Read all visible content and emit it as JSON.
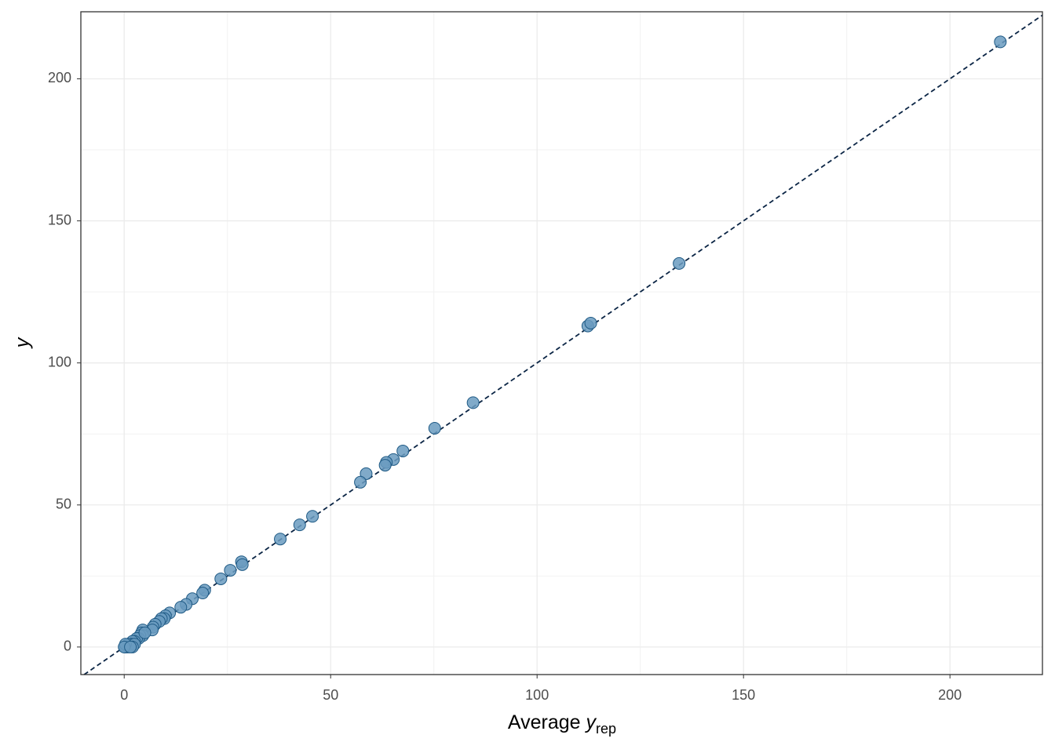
{
  "chart_data": {
    "type": "scatter",
    "x_label": "Average",
    "x_label_var": "y",
    "x_label_sub": "rep",
    "y_label": "y",
    "x": [
      212.2,
      134.4,
      112.3,
      113,
      84.5,
      75.2,
      67.5,
      65.2,
      63.5,
      63.2,
      58.6,
      57.2,
      45.6,
      42.5,
      37.8,
      28.4,
      28.6,
      25.7,
      23.4,
      19.5,
      19,
      16.5,
      15,
      13.7,
      11,
      10,
      9.7,
      9,
      8.5,
      7.5,
      7,
      6.8,
      4.5,
      4.2,
      4.5,
      3.8,
      3.5,
      3,
      2.5,
      2,
      1.8,
      1,
      0.5,
      0.2,
      1,
      2.5,
      2,
      0.3,
      0,
      1.5,
      5
    ],
    "values": [
      213,
      135,
      113,
      114,
      86,
      77,
      69,
      66,
      65,
      64,
      61,
      58,
      46,
      43,
      38,
      30,
      29,
      27,
      24,
      20,
      19,
      17,
      15,
      14,
      12,
      11,
      10,
      10,
      9,
      8,
      7,
      6,
      6,
      5,
      4,
      4,
      3,
      3,
      2,
      2,
      1,
      1,
      0,
      0,
      0,
      1,
      0,
      1,
      0,
      0,
      5
    ],
    "color": "#6a9bbf",
    "edge_color": "#1f5a85",
    "line_color": "#0b2545",
    "xlim": [
      -10.5,
      222.4
    ],
    "ylim": [
      -9.7,
      223.6
    ],
    "xticks": [
      0,
      50,
      100,
      150,
      200
    ],
    "yticks": [
      0,
      50,
      100,
      150,
      200
    ],
    "grid": true
  }
}
